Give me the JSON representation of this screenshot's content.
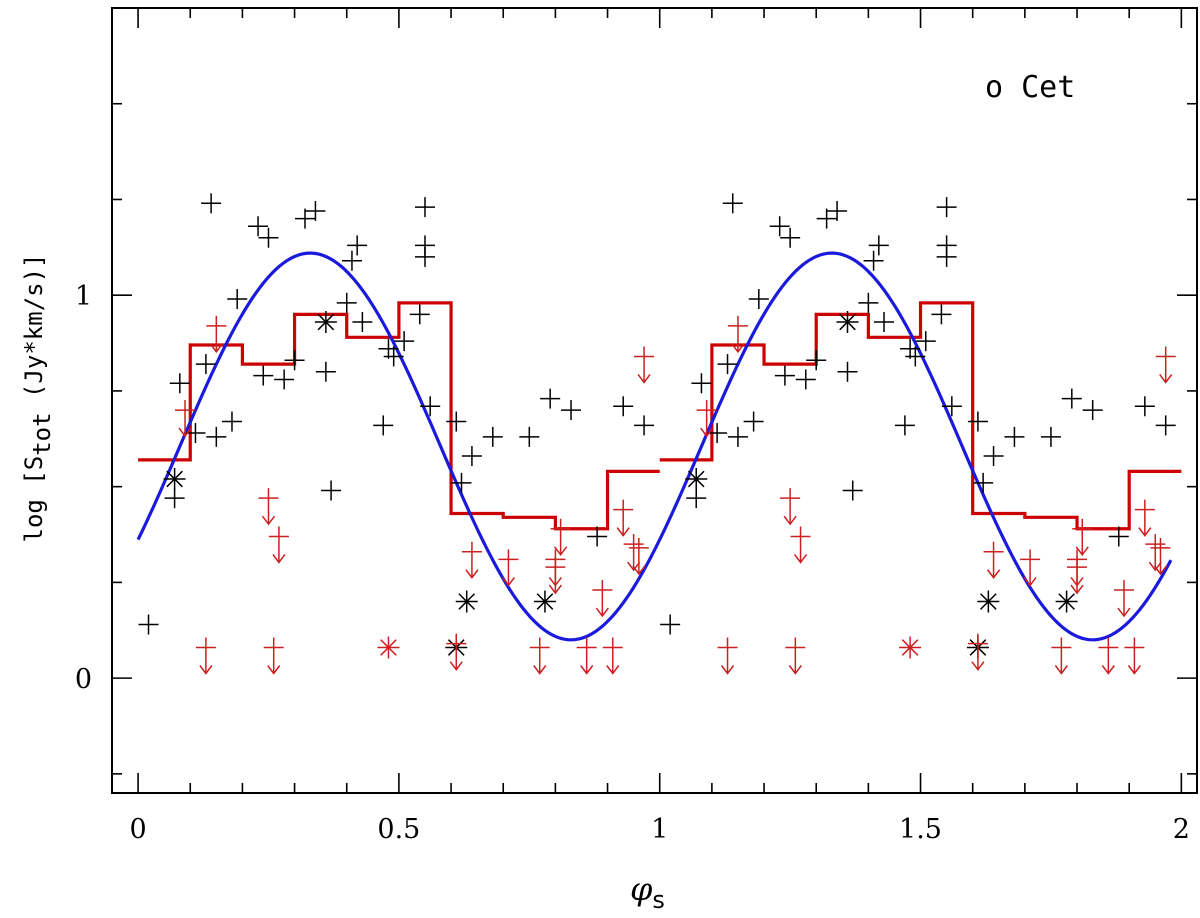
{
  "chart_data": {
    "type": "scatter",
    "title": "",
    "annotation": "o Cet",
    "xlabel": "φ",
    "xlabel_sub": "s",
    "ylabel": "log [S",
    "ylabel_sub": "tot",
    "ylabel_unit": " (Jy*km/s)]",
    "xlim": [
      -0.05,
      2.03
    ],
    "ylim": [
      -0.3,
      1.75
    ],
    "xticks": [
      0,
      0.5,
      1,
      1.5,
      2
    ],
    "xtick_labels": [
      "0",
      "0.5",
      "1",
      "1.5",
      "2"
    ],
    "yticks": [
      0,
      1
    ],
    "ytick_labels": [
      "0",
      "1"
    ],
    "ytick_minor": [
      -0.25,
      0.25,
      0.5,
      0.75,
      1.25,
      1.5
    ],
    "grid": false,
    "colors": {
      "detection": "#000000",
      "upper_limit": "#cc2020",
      "binned": "#cc0000",
      "fit": "#1a1adc"
    },
    "series": [
      {
        "kind": "detections",
        "marker": "plus",
        "color": "#000000",
        "points": [
          [
            0.02,
            0.14
          ],
          [
            0.07,
            0.47
          ],
          [
            0.08,
            0.77
          ],
          [
            0.11,
            0.64
          ],
          [
            0.13,
            0.82
          ],
          [
            0.14,
            1.24
          ],
          [
            0.15,
            0.63
          ],
          [
            0.18,
            0.67
          ],
          [
            0.19,
            0.99
          ],
          [
            0.23,
            1.18
          ],
          [
            0.24,
            0.79
          ],
          [
            0.25,
            1.15
          ],
          [
            0.28,
            0.78
          ],
          [
            0.3,
            0.83
          ],
          [
            0.32,
            1.2
          ],
          [
            0.34,
            1.22
          ],
          [
            0.36,
            0.8
          ],
          [
            0.37,
            0.49
          ],
          [
            0.4,
            0.98
          ],
          [
            0.41,
            1.09
          ],
          [
            0.42,
            1.13
          ],
          [
            0.43,
            0.93
          ],
          [
            0.47,
            0.66
          ],
          [
            0.48,
            0.86
          ],
          [
            0.49,
            0.84
          ],
          [
            0.51,
            0.88
          ],
          [
            0.54,
            0.95
          ],
          [
            0.55,
            1.23
          ],
          [
            0.55,
            1.13
          ],
          [
            0.55,
            1.1
          ],
          [
            0.56,
            0.71
          ],
          [
            0.61,
            0.67
          ],
          [
            0.62,
            0.51
          ],
          [
            0.64,
            0.58
          ],
          [
            0.68,
            0.63
          ],
          [
            0.75,
            0.63
          ],
          [
            0.79,
            0.73
          ],
          [
            0.83,
            0.7
          ],
          [
            0.88,
            0.37
          ],
          [
            0.93,
            0.71
          ],
          [
            0.97,
            0.66
          ]
        ]
      },
      {
        "kind": "detections",
        "marker": "asterisk",
        "color": "#000000",
        "points": [
          [
            0.07,
            0.52
          ],
          [
            0.36,
            0.93
          ],
          [
            0.61,
            0.08
          ],
          [
            0.63,
            0.2
          ],
          [
            0.78,
            0.2
          ]
        ]
      },
      {
        "kind": "upper limits",
        "marker": "arrow",
        "color": "#cc2020",
        "points": [
          [
            0.09,
            0.7
          ],
          [
            0.13,
            0.08
          ],
          [
            0.15,
            0.92
          ],
          [
            0.25,
            0.47
          ],
          [
            0.26,
            0.08
          ],
          [
            0.27,
            0.37
          ],
          [
            0.61,
            0.09
          ],
          [
            0.64,
            0.33
          ],
          [
            0.71,
            0.31
          ],
          [
            0.77,
            0.08
          ],
          [
            0.8,
            0.31
          ],
          [
            0.8,
            0.29
          ],
          [
            0.81,
            0.39
          ],
          [
            0.86,
            0.08
          ],
          [
            0.89,
            0.23
          ],
          [
            0.91,
            0.08
          ],
          [
            0.93,
            0.44
          ],
          [
            0.95,
            0.35
          ],
          [
            0.96,
            0.34
          ],
          [
            0.97,
            0.84
          ]
        ]
      },
      {
        "kind": "upper limits",
        "marker": "asterisk",
        "color": "#cc2020",
        "points": [
          [
            0.48,
            0.08
          ]
        ]
      },
      {
        "kind": "binned mean",
        "marker": "step",
        "color": "#cc0000",
        "bins": [
          [
            0.0,
            0.1,
            0.57
          ],
          [
            0.1,
            0.2,
            0.87
          ],
          [
            0.2,
            0.3,
            0.82
          ],
          [
            0.3,
            0.4,
            0.95
          ],
          [
            0.4,
            0.5,
            0.89
          ],
          [
            0.5,
            0.6,
            0.98
          ],
          [
            0.6,
            0.7,
            0.43
          ],
          [
            0.7,
            0.8,
            0.42
          ],
          [
            0.8,
            0.9,
            0.39
          ],
          [
            0.9,
            1.0,
            0.54
          ]
        ]
      },
      {
        "kind": "sinusoid fit",
        "marker": "line",
        "color": "#1a1adc",
        "mean": 0.605,
        "amplitude": 0.505,
        "phase_of_maximum": 0.33,
        "x_range": [
          0.0,
          1.98
        ]
      }
    ],
    "phase_repeat": true
  }
}
